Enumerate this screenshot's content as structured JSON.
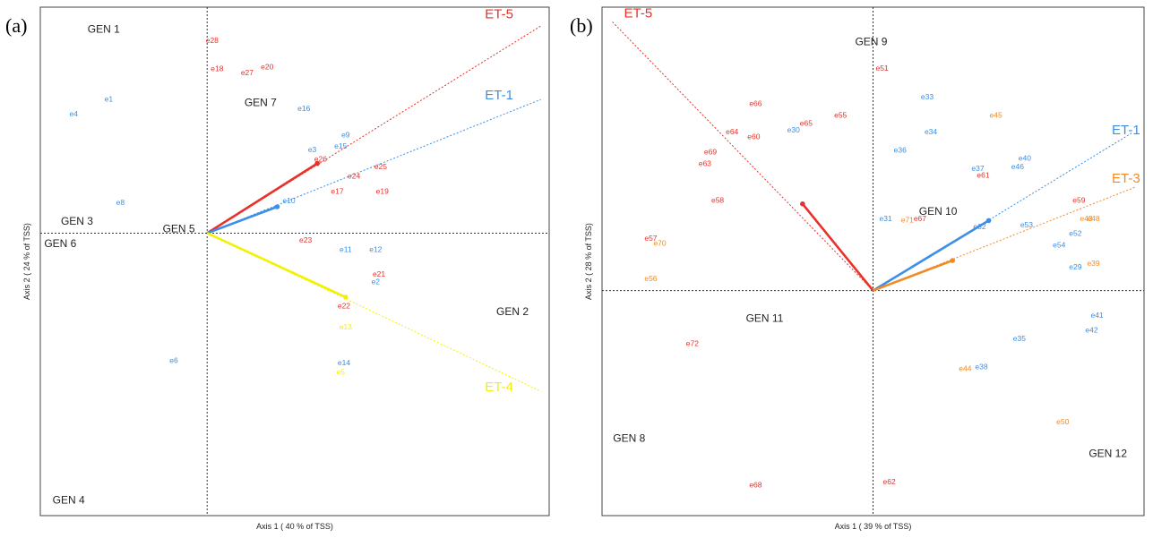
{
  "colors": {
    "red": "#e8312a",
    "blue": "#3b8fe8",
    "yellow": "#f2f200",
    "orange": "#f08a24"
  },
  "panels": [
    {
      "tag": "(a)"
    },
    {
      "tag": "(b)"
    }
  ],
  "chart_data": [
    {
      "type": "scatter",
      "subtype": "GGE biplot",
      "xlabel": "Axis 1 ( 40 % of TSS)",
      "ylabel": "Axis 2 ( 24 % of TSS)",
      "xlim": [
        -1.0,
        2.05
      ],
      "ylim": [
        -1.5,
        1.2
      ],
      "grid": false,
      "genotypes": [
        {
          "label": "GEN 1",
          "x": -0.62,
          "y": 1.08
        },
        {
          "label": "GEN 7",
          "x": 0.32,
          "y": 0.69
        },
        {
          "label": "GEN 3",
          "x": -0.78,
          "y": 0.06
        },
        {
          "label": "GEN 6",
          "x": -0.88,
          "y": -0.06
        },
        {
          "label": "GEN 5",
          "x": -0.17,
          "y": 0.02
        },
        {
          "label": "GEN 2",
          "x": 1.83,
          "y": -0.42
        },
        {
          "label": "GEN 4",
          "x": -0.83,
          "y": -1.42
        }
      ],
      "environments": [
        {
          "label": "e28",
          "x": 0.03,
          "y": 1.02,
          "color": "red"
        },
        {
          "label": "e18",
          "x": 0.06,
          "y": 0.87,
          "color": "red"
        },
        {
          "label": "e27",
          "x": 0.24,
          "y": 0.85,
          "color": "red"
        },
        {
          "label": "e20",
          "x": 0.36,
          "y": 0.88,
          "color": "red"
        },
        {
          "label": "e1",
          "x": -0.59,
          "y": 0.71,
          "color": "blue"
        },
        {
          "label": "e4",
          "x": -0.8,
          "y": 0.63,
          "color": "blue"
        },
        {
          "label": "e16",
          "x": 0.58,
          "y": 0.66,
          "color": "blue"
        },
        {
          "label": "e9",
          "x": 0.83,
          "y": 0.52,
          "color": "blue"
        },
        {
          "label": "e15",
          "x": 0.8,
          "y": 0.46,
          "color": "blue"
        },
        {
          "label": "e3",
          "x": 0.63,
          "y": 0.44,
          "color": "blue"
        },
        {
          "label": "e26",
          "x": 0.68,
          "y": 0.39,
          "color": "red"
        },
        {
          "label": "e25",
          "x": 1.04,
          "y": 0.35,
          "color": "red"
        },
        {
          "label": "e24",
          "x": 0.88,
          "y": 0.3,
          "color": "red"
        },
        {
          "label": "e17",
          "x": 0.78,
          "y": 0.22,
          "color": "red"
        },
        {
          "label": "e19",
          "x": 1.05,
          "y": 0.22,
          "color": "red"
        },
        {
          "label": "e10",
          "x": 0.49,
          "y": 0.17,
          "color": "blue"
        },
        {
          "label": "e8",
          "x": -0.52,
          "y": 0.16,
          "color": "blue"
        },
        {
          "label": "e23",
          "x": 0.59,
          "y": -0.04,
          "color": "red"
        },
        {
          "label": "e11",
          "x": 0.83,
          "y": -0.09,
          "color": "blue"
        },
        {
          "label": "e12",
          "x": 1.01,
          "y": -0.09,
          "color": "blue"
        },
        {
          "label": "e21",
          "x": 1.03,
          "y": -0.22,
          "color": "red"
        },
        {
          "label": "e2",
          "x": 1.01,
          "y": -0.26,
          "color": "blue"
        },
        {
          "label": "e22",
          "x": 0.82,
          "y": -0.39,
          "color": "red"
        },
        {
          "label": "e13",
          "x": 0.83,
          "y": -0.5,
          "color": "yellow"
        },
        {
          "label": "e6",
          "x": -0.2,
          "y": -0.68,
          "color": "blue"
        },
        {
          "label": "e14",
          "x": 0.82,
          "y": -0.69,
          "color": "blue"
        },
        {
          "label": "e5",
          "x": 0.8,
          "y": -0.74,
          "color": "yellow"
        }
      ],
      "vectors": [
        {
          "label": "ET-5",
          "color": "red",
          "tip": [
            0.66,
            0.37
          ],
          "end": [
            2.0,
            1.1
          ],
          "label_at": [
            1.75,
            1.16
          ]
        },
        {
          "label": "ET-1",
          "color": "blue",
          "tip": [
            0.42,
            0.14
          ],
          "end": [
            2.0,
            0.71
          ],
          "label_at": [
            1.75,
            0.73
          ]
        },
        {
          "label": "ET-4",
          "color": "yellow",
          "tip": [
            0.83,
            -0.34
          ],
          "end": [
            2.0,
            -0.84
          ],
          "label_at": [
            1.75,
            -0.82
          ]
        }
      ]
    },
    {
      "type": "scatter",
      "subtype": "GGE biplot",
      "xlabel": "Axis 1 ( 39 % of TSS)",
      "ylabel": "Axis 2 ( 28 % of TSS)",
      "xlim": [
        -1.5,
        1.5
      ],
      "ylim": [
        -1.35,
        1.7
      ],
      "grid": false,
      "genotypes": [
        {
          "label": "GEN 9",
          "x": -0.01,
          "y": 1.49
        },
        {
          "label": "GEN 10",
          "x": 0.36,
          "y": 0.47
        },
        {
          "label": "GEN 11",
          "x": -0.6,
          "y": -0.17
        },
        {
          "label": "GEN 8",
          "x": -1.35,
          "y": -0.89
        },
        {
          "label": "GEN 12",
          "x": 1.3,
          "y": -0.98
        }
      ],
      "environments": [
        {
          "label": "e51",
          "x": 0.05,
          "y": 1.33,
          "color": "red"
        },
        {
          "label": "e33",
          "x": 0.3,
          "y": 1.16,
          "color": "blue"
        },
        {
          "label": "e45",
          "x": 0.68,
          "y": 1.05,
          "color": "orange"
        },
        {
          "label": "e66",
          "x": -0.65,
          "y": 1.12,
          "color": "red"
        },
        {
          "label": "e65",
          "x": -0.37,
          "y": 1.0,
          "color": "red"
        },
        {
          "label": "e55",
          "x": -0.18,
          "y": 1.05,
          "color": "red"
        },
        {
          "label": "e30",
          "x": -0.44,
          "y": 0.96,
          "color": "blue"
        },
        {
          "label": "e34",
          "x": 0.32,
          "y": 0.95,
          "color": "blue"
        },
        {
          "label": "e64",
          "x": -0.78,
          "y": 0.95,
          "color": "red"
        },
        {
          "label": "e60",
          "x": -0.66,
          "y": 0.92,
          "color": "red"
        },
        {
          "label": "e36",
          "x": 0.15,
          "y": 0.84,
          "color": "blue"
        },
        {
          "label": "e40",
          "x": 0.84,
          "y": 0.79,
          "color": "blue"
        },
        {
          "label": "e69",
          "x": -0.9,
          "y": 0.83,
          "color": "red"
        },
        {
          "label": "e63",
          "x": -0.93,
          "y": 0.76,
          "color": "red"
        },
        {
          "label": "e37",
          "x": 0.58,
          "y": 0.73,
          "color": "blue"
        },
        {
          "label": "e46",
          "x": 0.8,
          "y": 0.74,
          "color": "blue"
        },
        {
          "label": "e61",
          "x": 0.61,
          "y": 0.69,
          "color": "red"
        },
        {
          "label": "e58",
          "x": -0.86,
          "y": 0.54,
          "color": "red"
        },
        {
          "label": "e59",
          "x": 1.14,
          "y": 0.54,
          "color": "red"
        },
        {
          "label": "e31",
          "x": 0.07,
          "y": 0.43,
          "color": "blue"
        },
        {
          "label": "e71",
          "x": 0.19,
          "y": 0.42,
          "color": "orange"
        },
        {
          "label": "e67",
          "x": 0.26,
          "y": 0.43,
          "color": "red"
        },
        {
          "label": "e32",
          "x": 0.59,
          "y": 0.38,
          "color": "blue"
        },
        {
          "label": "e53",
          "x": 0.85,
          "y": 0.39,
          "color": "blue"
        },
        {
          "label": "e43",
          "x": 1.18,
          "y": 0.43,
          "color": "orange"
        },
        {
          "label": "e48",
          "x": 1.22,
          "y": 0.43,
          "color": "orange"
        },
        {
          "label": "e52",
          "x": 1.12,
          "y": 0.34,
          "color": "blue"
        },
        {
          "label": "e57",
          "x": -1.23,
          "y": 0.31,
          "color": "red"
        },
        {
          "label": "e70",
          "x": -1.18,
          "y": 0.28,
          "color": "orange"
        },
        {
          "label": "e54",
          "x": 1.03,
          "y": 0.27,
          "color": "blue"
        },
        {
          "label": "e39",
          "x": 1.22,
          "y": 0.16,
          "color": "orange"
        },
        {
          "label": "e29",
          "x": 1.12,
          "y": 0.14,
          "color": "blue"
        },
        {
          "label": "e56",
          "x": -1.23,
          "y": 0.07,
          "color": "orange"
        },
        {
          "label": "e41",
          "x": 1.24,
          "y": -0.15,
          "color": "blue"
        },
        {
          "label": "e42",
          "x": 1.21,
          "y": -0.24,
          "color": "blue"
        },
        {
          "label": "e35",
          "x": 0.81,
          "y": -0.29,
          "color": "blue"
        },
        {
          "label": "e72",
          "x": -1.0,
          "y": -0.32,
          "color": "red"
        },
        {
          "label": "e44",
          "x": 0.51,
          "y": -0.47,
          "color": "orange"
        },
        {
          "label": "e38",
          "x": 0.6,
          "y": -0.46,
          "color": "blue"
        },
        {
          "label": "e50",
          "x": 1.05,
          "y": -0.79,
          "color": "orange"
        },
        {
          "label": "e68",
          "x": -0.65,
          "y": -1.17,
          "color": "red"
        },
        {
          "label": "e62",
          "x": 0.09,
          "y": -1.15,
          "color": "red"
        }
      ],
      "vectors": [
        {
          "label": "ET-5",
          "color": "red",
          "tip": [
            -0.39,
            0.52
          ],
          "end": [
            -1.45,
            1.62
          ],
          "label_at": [
            -1.3,
            1.66
          ]
        },
        {
          "label": "ET-1",
          "color": "blue",
          "tip": [
            0.64,
            0.42
          ],
          "end": [
            1.44,
            0.95
          ],
          "label_at": [
            1.4,
            0.96
          ]
        },
        {
          "label": "ET-3",
          "color": "orange",
          "tip": [
            0.44,
            0.18
          ],
          "end": [
            1.45,
            0.62
          ],
          "label_at": [
            1.4,
            0.67
          ]
        }
      ]
    }
  ]
}
